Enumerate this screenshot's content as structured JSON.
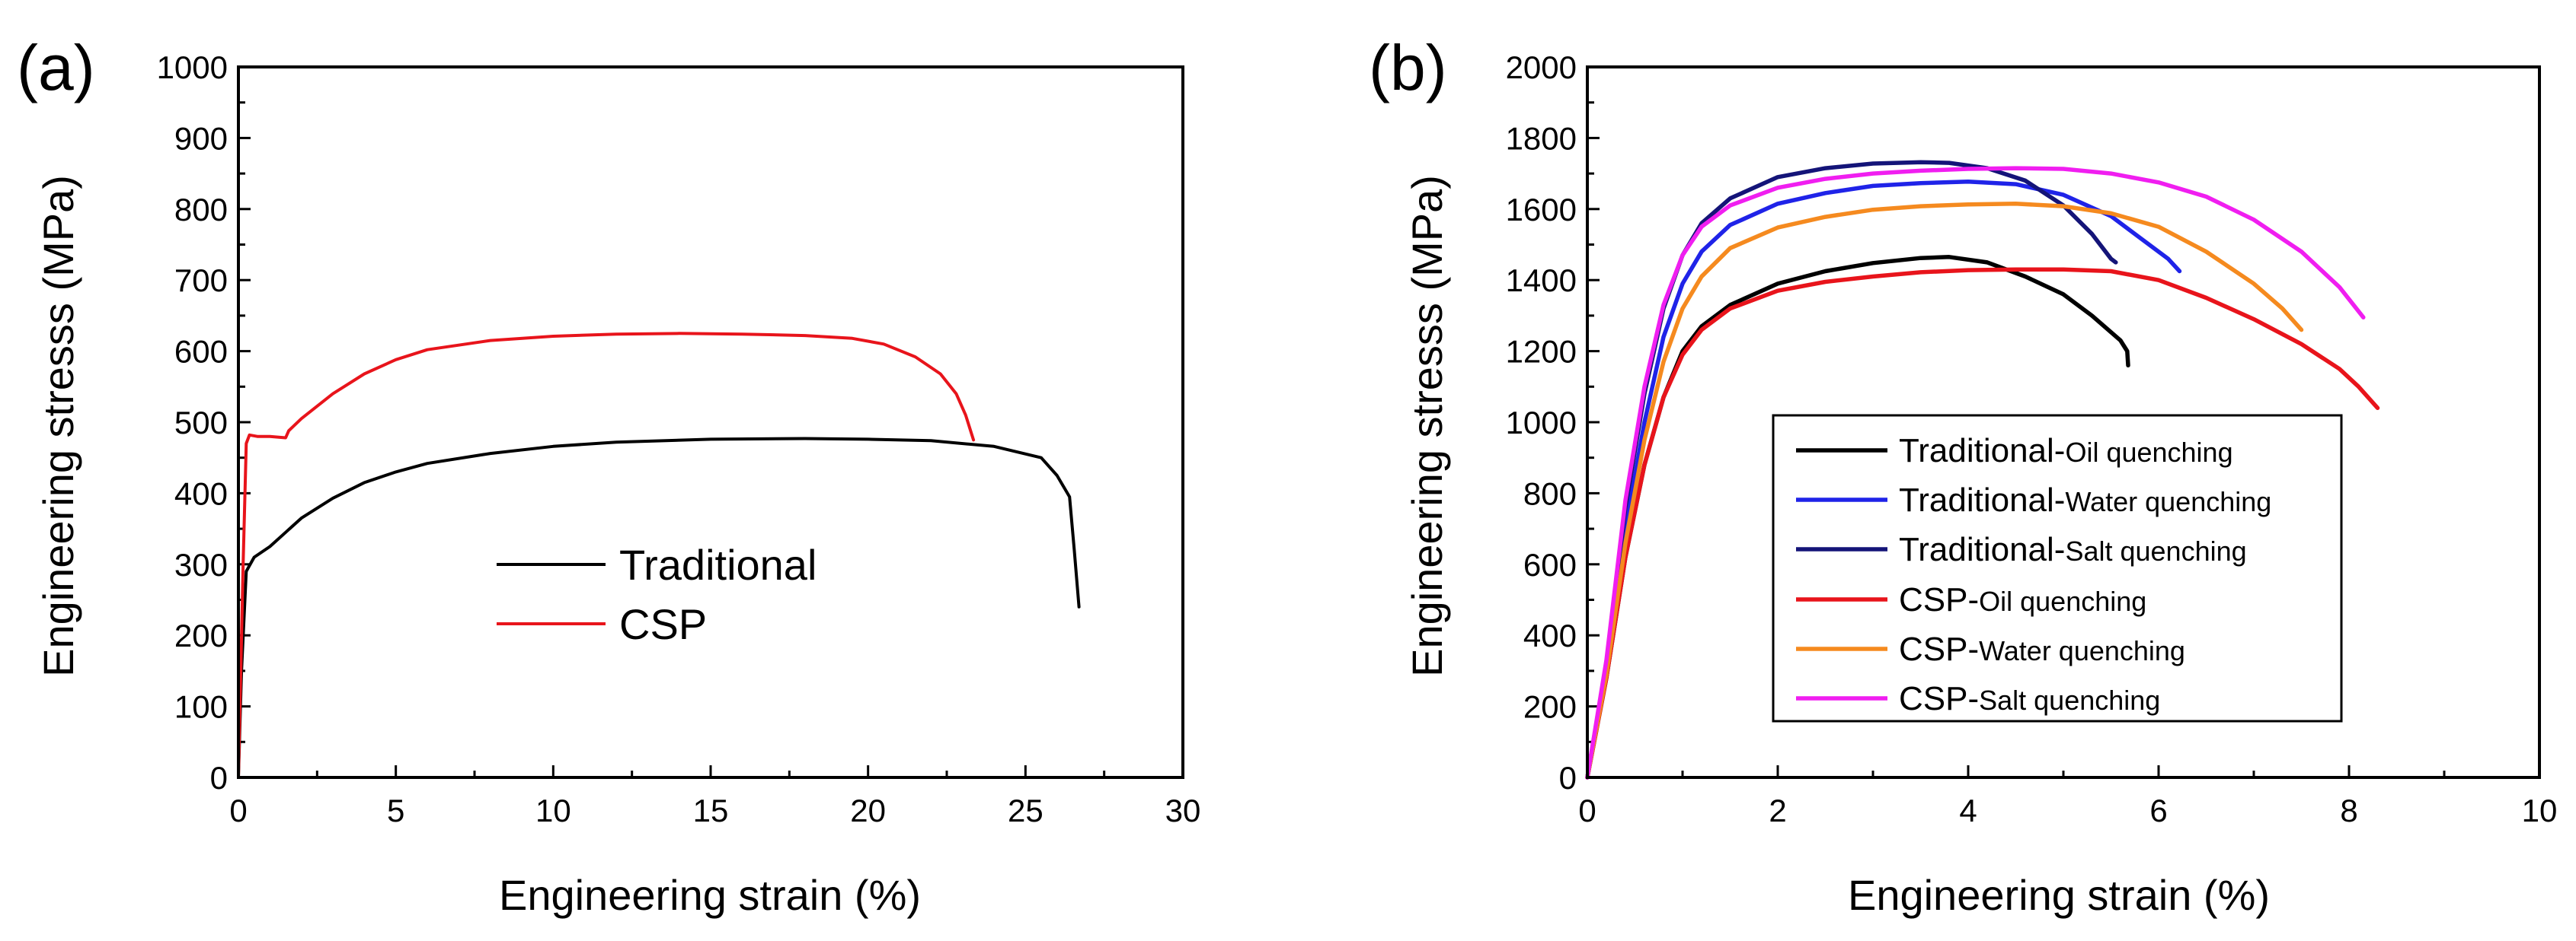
{
  "chart_data": [
    {
      "type": "line",
      "panel_label": "(a)",
      "xlabel": "Engineering strain (%)",
      "ylabel": "Engineering stresss (MPa)",
      "xlim": [
        0,
        30
      ],
      "ylim": [
        0,
        1000
      ],
      "xticks": [
        0,
        5,
        10,
        15,
        20,
        25,
        30
      ],
      "yticks": [
        0,
        100,
        200,
        300,
        400,
        500,
        600,
        700,
        800,
        900,
        1000
      ],
      "grid": false,
      "legend": {
        "placement": "center"
      },
      "series": [
        {
          "name": "Traditional",
          "color": "#000000",
          "points": [
            [
              0,
              0
            ],
            [
              0.1,
              150
            ],
            [
              0.25,
              290
            ],
            [
              0.5,
              310
            ],
            [
              1,
              325
            ],
            [
              1.5,
              345
            ],
            [
              2,
              365
            ],
            [
              3,
              393
            ],
            [
              4,
              415
            ],
            [
              5,
              430
            ],
            [
              6,
              442
            ],
            [
              8,
              456
            ],
            [
              10,
              466
            ],
            [
              12,
              472
            ],
            [
              15,
              476
            ],
            [
              18,
              477
            ],
            [
              20,
              476
            ],
            [
              22,
              474
            ],
            [
              24,
              466
            ],
            [
              25.5,
              450
            ],
            [
              26,
              425
            ],
            [
              26.4,
              395
            ],
            [
              26.55,
              320
            ],
            [
              26.7,
              240
            ]
          ]
        },
        {
          "name": "CSP",
          "color": "#e8141b",
          "points": [
            [
              0,
              0
            ],
            [
              0.15,
              300
            ],
            [
              0.25,
              470
            ],
            [
              0.35,
              482
            ],
            [
              0.6,
              480
            ],
            [
              1,
              480
            ],
            [
              1.5,
              478
            ],
            [
              1.6,
              488
            ],
            [
              2,
              505
            ],
            [
              3,
              540
            ],
            [
              4,
              568
            ],
            [
              5,
              588
            ],
            [
              6,
              602
            ],
            [
              8,
              615
            ],
            [
              10,
              621
            ],
            [
              12,
              624
            ],
            [
              14,
              625
            ],
            [
              16,
              624
            ],
            [
              18,
              622
            ],
            [
              19.5,
              618
            ],
            [
              20.5,
              610
            ],
            [
              21.5,
              592
            ],
            [
              22.3,
              568
            ],
            [
              22.8,
              540
            ],
            [
              23.1,
              510
            ],
            [
              23.35,
              475
            ]
          ]
        }
      ]
    },
    {
      "type": "line",
      "panel_label": "(b)",
      "xlabel": "Engineering strain (%)",
      "ylabel": "Engineering stresss (MPa)",
      "xlim": [
        0,
        10
      ],
      "ylim": [
        0,
        2000
      ],
      "xticks": [
        0,
        2,
        4,
        6,
        8,
        10
      ],
      "yticks": [
        0,
        200,
        400,
        600,
        800,
        1000,
        1200,
        1400,
        1600,
        1800,
        2000
      ],
      "grid": false,
      "legend": {
        "placement": "bottom-center"
      },
      "series": [
        {
          "name_main": "Traditional-",
          "name_sub": "Oil quenching",
          "color": "#000000",
          "points": [
            [
              0,
              0
            ],
            [
              0.2,
              280
            ],
            [
              0.4,
              620
            ],
            [
              0.6,
              880
            ],
            [
              0.8,
              1070
            ],
            [
              1.0,
              1200
            ],
            [
              1.2,
              1270
            ],
            [
              1.5,
              1330
            ],
            [
              2.0,
              1390
            ],
            [
              2.5,
              1425
            ],
            [
              3.0,
              1448
            ],
            [
              3.5,
              1462
            ],
            [
              3.8,
              1465
            ],
            [
              4.2,
              1450
            ],
            [
              4.6,
              1410
            ],
            [
              5.0,
              1360
            ],
            [
              5.3,
              1300
            ],
            [
              5.6,
              1230
            ],
            [
              5.67,
              1200
            ],
            [
              5.68,
              1160
            ]
          ]
        },
        {
          "name_main": "Traditional-",
          "name_sub": "Water quenching",
          "color": "#1f23e8",
          "points": [
            [
              0,
              0
            ],
            [
              0.2,
              300
            ],
            [
              0.4,
              700
            ],
            [
              0.6,
              1000
            ],
            [
              0.8,
              1240
            ],
            [
              1.0,
              1390
            ],
            [
              1.2,
              1480
            ],
            [
              1.5,
              1555
            ],
            [
              2.0,
              1615
            ],
            [
              2.5,
              1645
            ],
            [
              3.0,
              1665
            ],
            [
              3.5,
              1673
            ],
            [
              4.0,
              1677
            ],
            [
              4.5,
              1670
            ],
            [
              5.0,
              1640
            ],
            [
              5.5,
              1580
            ],
            [
              5.8,
              1520
            ],
            [
              6.1,
              1460
            ],
            [
              6.22,
              1425
            ]
          ]
        },
        {
          "name_main": "Traditional-",
          "name_sub": "Salt quenching",
          "color": "#141478",
          "points": [
            [
              0,
              0
            ],
            [
              0.2,
              320
            ],
            [
              0.4,
              760
            ],
            [
              0.6,
              1080
            ],
            [
              0.8,
              1320
            ],
            [
              1.0,
              1470
            ],
            [
              1.2,
              1560
            ],
            [
              1.5,
              1630
            ],
            [
              2.0,
              1690
            ],
            [
              2.5,
              1715
            ],
            [
              3.0,
              1728
            ],
            [
              3.5,
              1732
            ],
            [
              3.8,
              1730
            ],
            [
              4.2,
              1715
            ],
            [
              4.6,
              1680
            ],
            [
              5.0,
              1610
            ],
            [
              5.3,
              1530
            ],
            [
              5.5,
              1460
            ],
            [
              5.55,
              1450
            ]
          ]
        },
        {
          "name_main": "CSP-",
          "name_sub": "Oil quenching",
          "color": "#e8141b",
          "points": [
            [
              0,
              0
            ],
            [
              0.2,
              280
            ],
            [
              0.4,
              620
            ],
            [
              0.6,
              880
            ],
            [
              0.8,
              1070
            ],
            [
              1.0,
              1190
            ],
            [
              1.2,
              1260
            ],
            [
              1.5,
              1320
            ],
            [
              2.0,
              1370
            ],
            [
              2.5,
              1395
            ],
            [
              3.0,
              1410
            ],
            [
              3.5,
              1422
            ],
            [
              4.0,
              1428
            ],
            [
              4.5,
              1430
            ],
            [
              5.0,
              1430
            ],
            [
              5.5,
              1425
            ],
            [
              6.0,
              1400
            ],
            [
              6.5,
              1350
            ],
            [
              7.0,
              1290
            ],
            [
              7.5,
              1220
            ],
            [
              7.9,
              1150
            ],
            [
              8.1,
              1100
            ],
            [
              8.3,
              1040
            ]
          ]
        },
        {
          "name_main": "CSP-",
          "name_sub": "Water quenching",
          "color": "#f58a1f",
          "points": [
            [
              0,
              0
            ],
            [
              0.2,
              290
            ],
            [
              0.4,
              660
            ],
            [
              0.6,
              950
            ],
            [
              0.8,
              1170
            ],
            [
              1.0,
              1320
            ],
            [
              1.2,
              1410
            ],
            [
              1.5,
              1490
            ],
            [
              2.0,
              1548
            ],
            [
              2.5,
              1578
            ],
            [
              3.0,
              1598
            ],
            [
              3.5,
              1608
            ],
            [
              4.0,
              1613
            ],
            [
              4.5,
              1615
            ],
            [
              5.0,
              1608
            ],
            [
              5.5,
              1588
            ],
            [
              6.0,
              1550
            ],
            [
              6.5,
              1480
            ],
            [
              7.0,
              1390
            ],
            [
              7.3,
              1320
            ],
            [
              7.5,
              1260
            ]
          ]
        },
        {
          "name_main": "CSP-",
          "name_sub": "Salt quenching",
          "color": "#f01ef0",
          "points": [
            [
              0,
              0
            ],
            [
              0.2,
              330
            ],
            [
              0.4,
              780
            ],
            [
              0.6,
              1100
            ],
            [
              0.8,
              1330
            ],
            [
              1.0,
              1470
            ],
            [
              1.2,
              1550
            ],
            [
              1.5,
              1610
            ],
            [
              2.0,
              1660
            ],
            [
              2.5,
              1685
            ],
            [
              3.0,
              1700
            ],
            [
              3.5,
              1708
            ],
            [
              4.0,
              1713
            ],
            [
              4.5,
              1715
            ],
            [
              5.0,
              1713
            ],
            [
              5.5,
              1700
            ],
            [
              6.0,
              1675
            ],
            [
              6.5,
              1635
            ],
            [
              7.0,
              1570
            ],
            [
              7.5,
              1480
            ],
            [
              7.9,
              1380
            ],
            [
              8.15,
              1295
            ]
          ]
        }
      ]
    }
  ]
}
